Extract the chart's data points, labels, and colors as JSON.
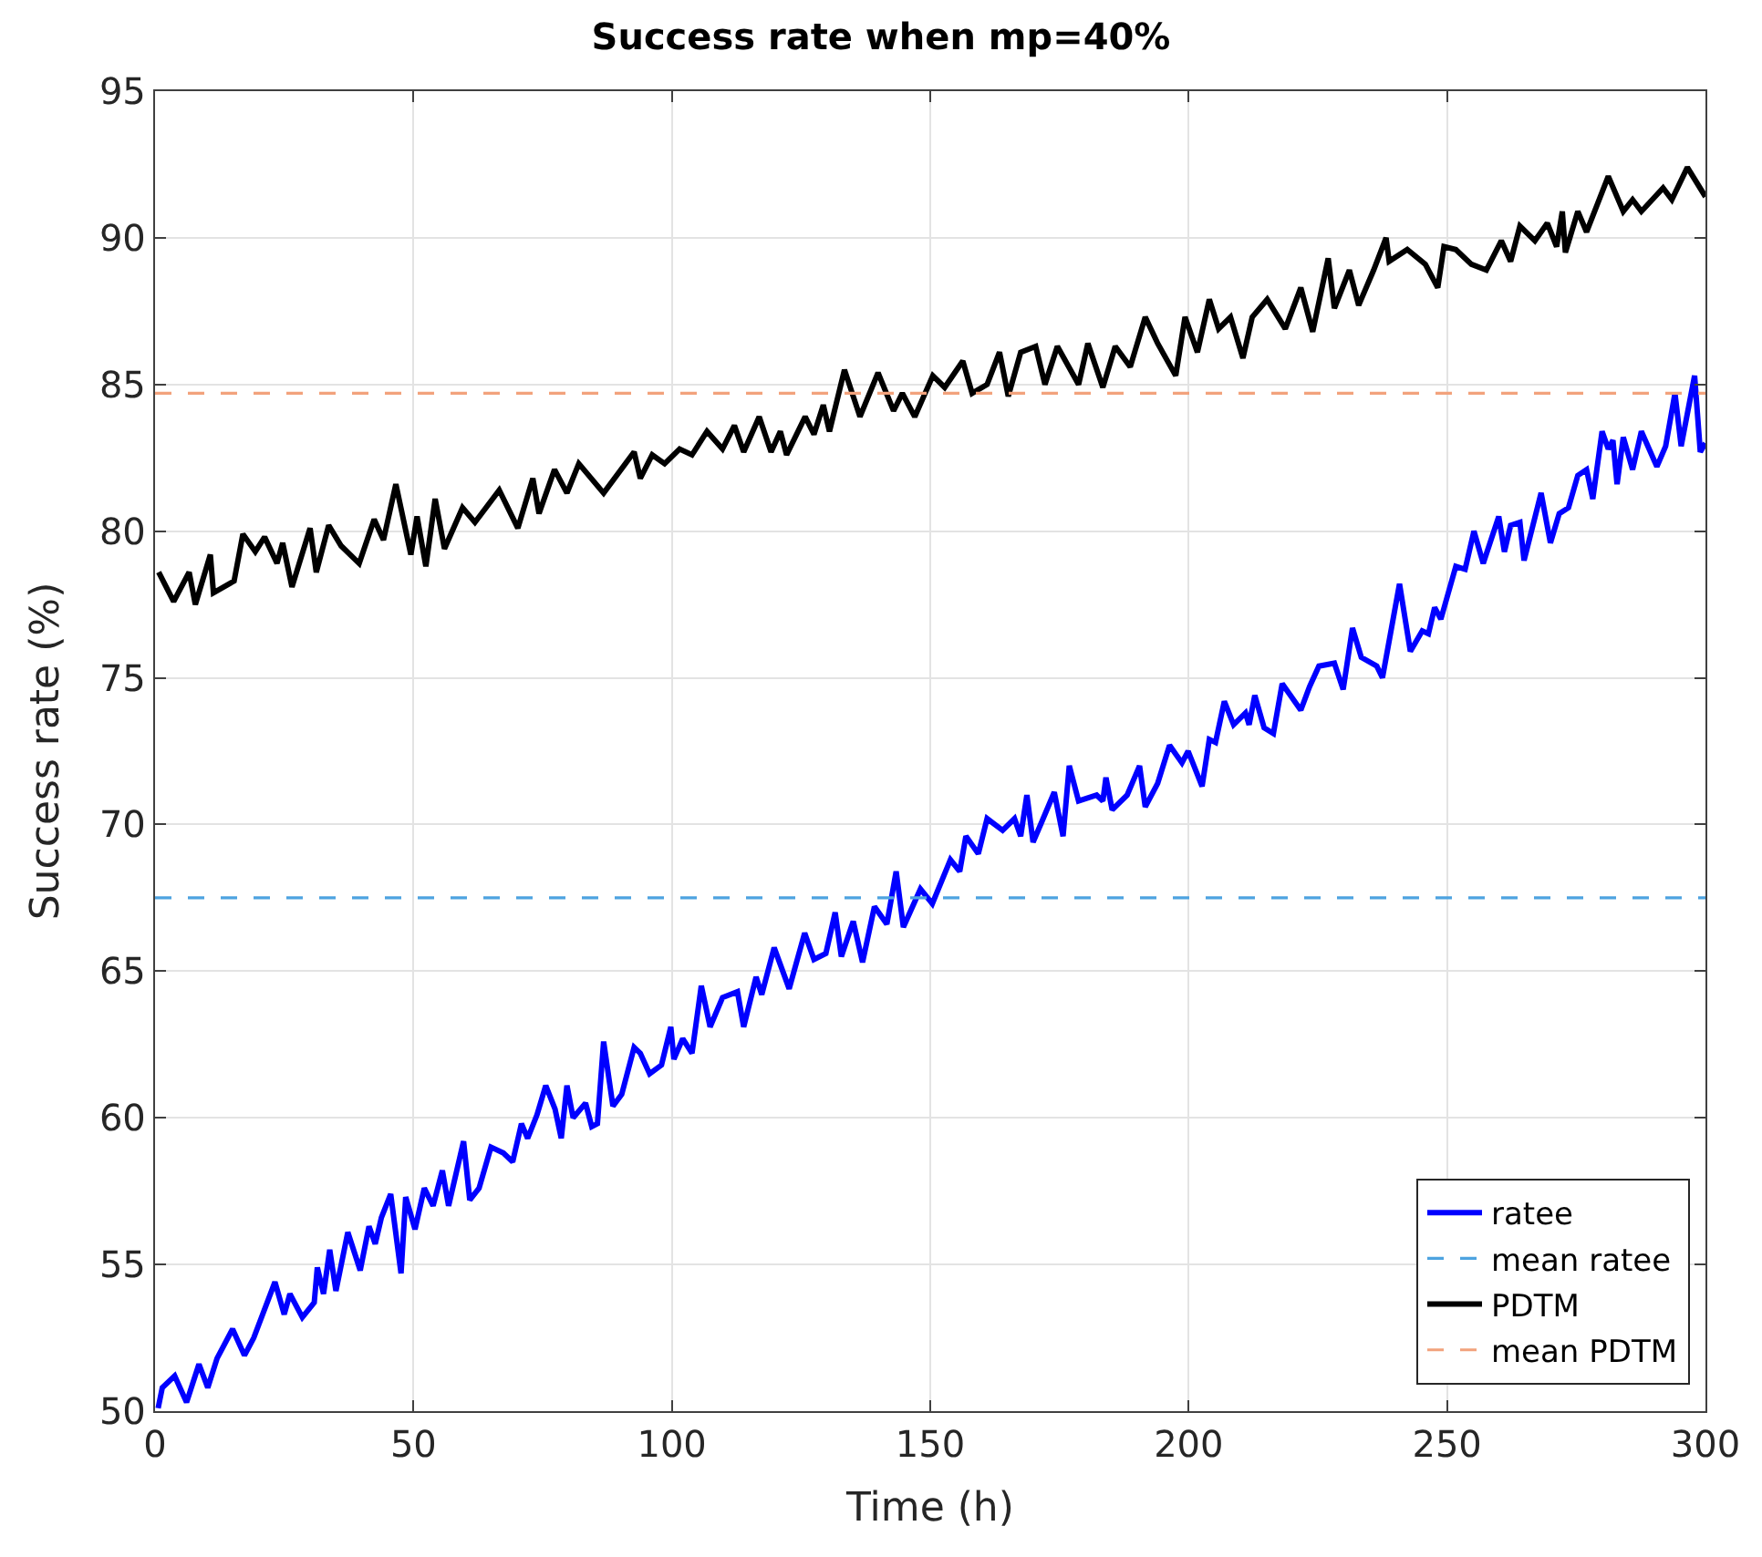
{
  "chart_data": {
    "type": "line",
    "title": "Success rate when mp=40%",
    "xlabel": "Time (h)",
    "ylabel": "Success rate (%)",
    "xlim": [
      0,
      300
    ],
    "xticks": [
      0,
      50,
      100,
      150,
      200,
      250,
      300
    ],
    "ylim": [
      50,
      95
    ],
    "yticks": [
      50,
      55,
      60,
      65,
      70,
      75,
      80,
      85,
      90,
      95
    ],
    "grid": true,
    "legend": "bottom right",
    "marker": "none",
    "series": [
      {
        "name": "ratee",
        "color": "#0000ff",
        "line_style": "solid",
        "x": [
          0.6,
          1.4,
          3.8,
          6.1,
          8.5,
          10.2,
          12,
          15,
          17.3,
          19.1,
          23.2,
          25,
          26.1,
          28.5,
          30.8,
          31.4,
          32.6,
          33.8,
          35,
          37.3,
          39.7,
          41.4,
          42.6,
          43.8,
          45.6,
          47.6,
          48.5,
          50.3,
          52.1,
          53.8,
          55.6,
          56.8,
          59.7,
          60.9,
          62.7,
          65,
          67.4,
          69.2,
          70.9,
          72.1,
          73.9,
          75.6,
          77.4,
          78.6,
          79.7,
          80.9,
          83.3,
          84.5,
          85.6,
          86.8,
          88.6,
          90.3,
          92.7,
          93.9,
          95.7,
          98,
          99.8,
          100.4,
          102.1,
          103.9,
          105.7,
          107.4,
          109.8,
          112.7,
          113.9,
          116.3,
          117.4,
          119.8,
          122.7,
          125.7,
          127.5,
          129.8,
          131.6,
          132.8,
          135.1,
          136.9,
          139.2,
          141.6,
          143.4,
          144.8,
          148.1,
          150.4,
          153.9,
          155.7,
          156.9,
          159.3,
          161,
          164,
          166.3,
          167.5,
          168.7,
          169.9,
          171.6,
          174,
          175.7,
          176.9,
          178.7,
          182.2,
          183.4,
          184,
          185.2,
          188.1,
          189.3,
          190.5,
          191.6,
          194,
          196.3,
          198.7,
          199.9,
          202.6,
          204,
          205.2,
          206.9,
          208.7,
          211,
          211.7,
          212.8,
          214.6,
          216.4,
          218.1,
          221.7,
          223.4,
          225.2,
          228.2,
          229.9,
          231.7,
          233.4,
          236.4,
          237.5,
          240.8,
          242.9,
          245.2,
          246.4,
          247.6,
          248.8,
          251.7,
          253.5,
          255.2,
          257,
          260,
          261.1,
          262.3,
          264.1,
          264.9,
          268.2,
          270,
          271.7,
          273.5,
          275.3,
          277,
          278.2,
          280,
          281.2,
          282.1,
          282.9,
          284.1,
          285.9,
          287.6,
          290.6,
          292.3,
          294.1,
          295.3,
          297.9,
          299,
          300
        ],
        "values": [
          50.1,
          50.8,
          51.2,
          50.3,
          51.6,
          50.8,
          51.8,
          52.8,
          51.9,
          52.5,
          54.4,
          53.3,
          54,
          53.2,
          53.7,
          54.9,
          54,
          55.5,
          54.1,
          56.1,
          54.8,
          56.3,
          55.7,
          56.6,
          57.4,
          54.7,
          57.3,
          56.2,
          57.6,
          57,
          58.2,
          57,
          59.2,
          57.2,
          57.6,
          59,
          58.8,
          58.5,
          59.8,
          59.3,
          60.1,
          61.1,
          60.3,
          59.3,
          61.1,
          60,
          60.5,
          59.7,
          59.8,
          62.6,
          60.4,
          60.8,
          62.4,
          62.2,
          61.5,
          61.8,
          63.1,
          62,
          62.7,
          62.2,
          64.5,
          63.1,
          64.1,
          64.3,
          63.1,
          64.8,
          64.2,
          65.8,
          64.4,
          66.3,
          65.4,
          65.6,
          67,
          65.5,
          66.7,
          65.3,
          67.2,
          66.6,
          68.4,
          66.5,
          67.8,
          67.3,
          68.8,
          68.4,
          69.6,
          69,
          70.2,
          69.8,
          70.2,
          69.6,
          71,
          69.4,
          70.1,
          71.1,
          69.6,
          72,
          70.8,
          71,
          70.8,
          71.6,
          70.5,
          71,
          71.5,
          72,
          70.6,
          71.4,
          72.7,
          72.1,
          72.5,
          71.3,
          72.9,
          72.8,
          74.2,
          73.4,
          73.8,
          73.4,
          74.4,
          73.3,
          73.1,
          74.8,
          73.9,
          74.7,
          75.4,
          75.5,
          74.6,
          76.7,
          75.7,
          75.4,
          75,
          78.2,
          75.9,
          76.6,
          76.5,
          77.4,
          77,
          78.8,
          78.7,
          80,
          78.9,
          80.5,
          79.3,
          80.2,
          80.3,
          79,
          81.3,
          79.6,
          80.6,
          80.8,
          81.9,
          82.1,
          81.1,
          83.4,
          82.8,
          83.1,
          81.6,
          83.2,
          82.1,
          83.4,
          82.2,
          82.9,
          84.7,
          82.9,
          85.3,
          82.7,
          83
        ]
      },
      {
        "name": "mean ratee",
        "color": "#4da3e0",
        "line_style": "dashed",
        "x": [
          0,
          300
        ],
        "values": [
          67.5,
          67.5
        ]
      },
      {
        "name": "PDTM",
        "color": "#000000",
        "line_style": "solid",
        "x": [
          0.7,
          3.6,
          6.6,
          7.8,
          10.7,
          11.3,
          15.3,
          17,
          19.4,
          21.2,
          23.6,
          24.7,
          26.5,
          30,
          31.2,
          33.6,
          36,
          39.5,
          42.4,
          44.2,
          46.6,
          49.5,
          50.7,
          52.4,
          54.2,
          56,
          59.5,
          61.9,
          66.6,
          70.2,
          73.1,
          74.3,
          77.3,
          79.7,
          82,
          86.8,
          92.7,
          93.9,
          96.2,
          98.6,
          101.5,
          103.9,
          106.8,
          109.8,
          112.1,
          113.9,
          116.9,
          119.2,
          121,
          122.2,
          125.8,
          127.5,
          129.3,
          130.5,
          133.4,
          136.4,
          139.9,
          142.9,
          144.6,
          147,
          150.5,
          152.8,
          156.3,
          158.1,
          161,
          163.4,
          165.1,
          167.5,
          170.4,
          172.2,
          174.6,
          178.7,
          180.5,
          183.4,
          185.8,
          188.7,
          191.6,
          194,
          197.5,
          199.3,
          201.7,
          204,
          205.8,
          208.1,
          210.5,
          212.3,
          215.2,
          218.7,
          221.7,
          224,
          227,
          228.2,
          231.1,
          232.9,
          235.8,
          238.2,
          238.8,
          242.3,
          245.8,
          248.2,
          249.4,
          251.7,
          254.7,
          257.6,
          260.5,
          262.3,
          264.1,
          267,
          269.4,
          271.2,
          272.3,
          272.9,
          275.3,
          277,
          281.2,
          284.1,
          285.9,
          287.6,
          291.8,
          293.5,
          296.5,
          300
        ],
        "values": [
          78.6,
          77.6,
          78.6,
          77.5,
          79.2,
          77.9,
          78.3,
          79.9,
          79.3,
          79.8,
          78.9,
          79.6,
          78.1,
          80.1,
          78.6,
          80.2,
          79.5,
          78.9,
          80.4,
          79.7,
          81.6,
          79.2,
          80.5,
          78.8,
          81.1,
          79.4,
          80.8,
          80.3,
          81.4,
          80.1,
          81.8,
          80.6,
          82.1,
          81.3,
          82.3,
          81.3,
          82.7,
          81.8,
          82.6,
          82.3,
          82.8,
          82.6,
          83.4,
          82.8,
          83.6,
          82.7,
          83.9,
          82.7,
          83.4,
          82.6,
          83.9,
          83.3,
          84.3,
          83.4,
          85.5,
          83.9,
          85.4,
          84.1,
          84.7,
          83.9,
          85.3,
          84.9,
          85.8,
          84.7,
          85,
          86.1,
          84.6,
          86.1,
          86.3,
          85,
          86.3,
          85,
          86.4,
          84.9,
          86.3,
          85.6,
          87.3,
          86.4,
          85.3,
          87.3,
          86.1,
          87.9,
          86.9,
          87.3,
          85.9,
          87.3,
          87.9,
          86.9,
          88.3,
          86.8,
          89.3,
          87.6,
          88.9,
          87.7,
          88.9,
          90,
          89.2,
          89.6,
          89.1,
          88.3,
          89.7,
          89.6,
          89.1,
          88.9,
          89.9,
          89.2,
          90.4,
          89.9,
          90.5,
          89.7,
          90.9,
          89.5,
          90.9,
          90.2,
          92.1,
          90.9,
          91.3,
          90.9,
          91.7,
          91.3,
          92.4,
          91.4
        ]
      },
      {
        "name": "mean PDTM",
        "color": "#f2a27c",
        "line_style": "dashed",
        "x": [
          0,
          300
        ],
        "values": [
          84.7,
          84.7
        ]
      }
    ]
  }
}
